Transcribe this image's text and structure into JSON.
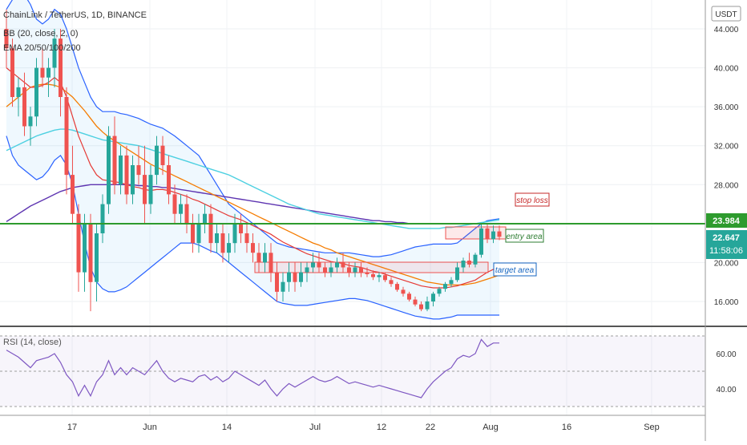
{
  "header": {
    "symbol_line": "ChainLink / TetherUS, 1D, BINANCE",
    "bb_line": "BB (20, close, 2, 0)",
    "ema_line": "EMA 20/50/100/200",
    "currency": "USDT"
  },
  "price_badges": {
    "level": "23.984",
    "last": "22.647",
    "countdown": "11:58:06"
  },
  "annotations": {
    "stop_loss": "stop loss",
    "entry": "entry area",
    "target": "target area"
  },
  "rsi": {
    "label": "RSI (14, close)"
  },
  "colors": {
    "up": "#26a69a",
    "down": "#ef5350",
    "bb": "#2962ff",
    "ema20": "#e53935",
    "ema50": "#f57c00",
    "ema100": "#4dd0e1",
    "ema200": "#5e35b1",
    "level": "#2e9b2e",
    "rsi": "#7e57c2"
  },
  "chart_data": {
    "type": "candlestick",
    "price_axis": {
      "ticks": [
        "44.000",
        "40.000",
        "36.000",
        "32.000",
        "28.000",
        "24.000",
        "20.000",
        "16.000"
      ],
      "tick_values": [
        44,
        40,
        36,
        32,
        28,
        24,
        20,
        16
      ]
    },
    "rsi_axis": {
      "ticks": [
        "60.00",
        "40.00"
      ],
      "tick_values": [
        60,
        40
      ]
    },
    "x_ticks": [
      "17",
      "Jun",
      "14",
      "Jul",
      "12",
      "22",
      "Aug",
      "16",
      "Sep"
    ],
    "horizontal_level": 23.984,
    "candles": [
      [
        44,
        46,
        40,
        42
      ],
      [
        42,
        43,
        36,
        37
      ],
      [
        37,
        39,
        35,
        38
      ],
      [
        38,
        39.5,
        33,
        34
      ],
      [
        34,
        36,
        32,
        35
      ],
      [
        35,
        41,
        34,
        40
      ],
      [
        40,
        42,
        38,
        39
      ],
      [
        39,
        41,
        37,
        40
      ],
      [
        40,
        44,
        38,
        43
      ],
      [
        43,
        44,
        35,
        37
      ],
      [
        37,
        38,
        27,
        29
      ],
      [
        29,
        32,
        24,
        25
      ],
      [
        25,
        26,
        17,
        19
      ],
      [
        19,
        25,
        17,
        24
      ],
      [
        24,
        25,
        15,
        18
      ],
      [
        18,
        24,
        16,
        23
      ],
      [
        23,
        27,
        22,
        26
      ],
      [
        26,
        34,
        25,
        33
      ],
      [
        33,
        35,
        27,
        28
      ],
      [
        28,
        32,
        27,
        31
      ],
      [
        31,
        32,
        26,
        27
      ],
      [
        27,
        31,
        26,
        30
      ],
      [
        30,
        32,
        28,
        29
      ],
      [
        29,
        32,
        24,
        26
      ],
      [
        26,
        30,
        25,
        29
      ],
      [
        29,
        33,
        28,
        32
      ],
      [
        32,
        33,
        29,
        30
      ],
      [
        30,
        31,
        26,
        27
      ],
      [
        27,
        28,
        24,
        25
      ],
      [
        25,
        27,
        24,
        26
      ],
      [
        26,
        27,
        23,
        24
      ],
      [
        24,
        25,
        21,
        22
      ],
      [
        22,
        25,
        21,
        24
      ],
      [
        24,
        26,
        23,
        25
      ],
      [
        25,
        26,
        21,
        22
      ],
      [
        22,
        24,
        21,
        23
      ],
      [
        23,
        24,
        20,
        21
      ],
      [
        21,
        23,
        20,
        22
      ],
      [
        22,
        25,
        21,
        24
      ],
      [
        24,
        25,
        22,
        23
      ],
      [
        23,
        24,
        21,
        22
      ],
      [
        22,
        23,
        20,
        21
      ],
      [
        21,
        22,
        19,
        20
      ],
      [
        20,
        22,
        19,
        21
      ],
      [
        21,
        22,
        18,
        19
      ],
      [
        19,
        20,
        16,
        17
      ],
      [
        17,
        19,
        16,
        18
      ],
      [
        18,
        20,
        17,
        19
      ],
      [
        19,
        20,
        17,
        18
      ],
      [
        18,
        20,
        17.5,
        19
      ],
      [
        19,
        20,
        18,
        19.5
      ],
      [
        19.5,
        21,
        19,
        20
      ],
      [
        20,
        21,
        19,
        19.5
      ],
      [
        19.5,
        20,
        18.5,
        19
      ],
      [
        19,
        20,
        18.5,
        19.5
      ],
      [
        19.5,
        20.5,
        19,
        20
      ],
      [
        20,
        21,
        19,
        19.5
      ],
      [
        19.5,
        20,
        18.5,
        19
      ],
      [
        19,
        20,
        18.5,
        19.5
      ],
      [
        19.5,
        20,
        18.5,
        19
      ],
      [
        19,
        19.5,
        18.5,
        18.8
      ],
      [
        18.8,
        19.2,
        18.2,
        18.5
      ],
      [
        18.5,
        19,
        18,
        18.7
      ],
      [
        18.7,
        19,
        18,
        18.2
      ],
      [
        18.2,
        18.5,
        17.5,
        17.8
      ],
      [
        17.8,
        18,
        17,
        17.2
      ],
      [
        17.2,
        17.5,
        16.5,
        16.8
      ],
      [
        16.8,
        17,
        16,
        16.2
      ],
      [
        16.2,
        16.5,
        15.5,
        15.7
      ],
      [
        15.7,
        16,
        15,
        15.2
      ],
      [
        15.2,
        16.5,
        15,
        16
      ],
      [
        16,
        17,
        15.5,
        16.8
      ],
      [
        16.8,
        17.5,
        16.5,
        17.3
      ],
      [
        17.3,
        18,
        17,
        17.8
      ],
      [
        17.8,
        18.5,
        17.5,
        18.2
      ],
      [
        18.2,
        20,
        18,
        19.5
      ],
      [
        19.5,
        20.5,
        19,
        20.2
      ],
      [
        20.2,
        21,
        19.5,
        19.8
      ],
      [
        19.8,
        21,
        19.5,
        20.8
      ],
      [
        20.8,
        24,
        20.5,
        23.5
      ],
      [
        23.5,
        24,
        22,
        22.4
      ],
      [
        22.4,
        23.8,
        22,
        23.2
      ],
      [
        23.2,
        23.8,
        22.3,
        22.647
      ]
    ],
    "ema20": [
      40,
      39.5,
      39,
      38.5,
      38,
      38,
      38.2,
      38.5,
      39,
      38.5,
      37,
      35,
      33,
      31.5,
      30,
      29,
      28.5,
      28.4,
      28.3,
      28.2,
      28,
      27.8,
      27.7,
      27.5,
      27.4,
      27.5,
      27.5,
      27.4,
      27.2,
      27,
      26.8,
      26.5,
      26.3,
      26,
      25.7,
      25.4,
      25.1,
      24.8,
      24.6,
      24.4,
      24.1,
      23.8,
      23.5,
      23.2,
      22.9,
      22.5,
      22.1,
      21.8,
      21.5,
      21.2,
      20.9,
      20.7,
      20.5,
      20.3,
      20.1,
      20,
      19.9,
      19.7,
      19.6,
      19.5,
      19.3,
      19.1,
      19,
      18.8,
      18.6,
      18.4,
      18.2,
      18,
      17.8,
      17.6,
      17.5,
      17.4,
      17.4,
      17.4,
      17.5,
      17.6,
      17.8,
      18,
      18.2,
      18.6,
      19,
      19.3,
      19.6
    ],
    "ema50": [
      36,
      36.5,
      37,
      37.5,
      38,
      38.2,
      38.3,
      38.3,
      38.2,
      38,
      37.5,
      37,
      36.3,
      35.6,
      34.8,
      34,
      33.4,
      32.9,
      32.5,
      32.1,
      31.7,
      31.3,
      30.9,
      30.5,
      30.1,
      29.8,
      29.5,
      29.2,
      28.9,
      28.6,
      28.3,
      28,
      27.7,
      27.4,
      27.1,
      26.8,
      26.5,
      26.2,
      25.9,
      25.6,
      25.3,
      25,
      24.7,
      24.4,
      24.1,
      23.8,
      23.5,
      23.2,
      22.9,
      22.6,
      22.3,
      22,
      21.8,
      21.5,
      21.3,
      21,
      20.8,
      20.6,
      20.4,
      20.2,
      20,
      19.8,
      19.6,
      19.4,
      19.2,
      19,
      18.8,
      18.6,
      18.4,
      18.2,
      18,
      17.9,
      17.8,
      17.7,
      17.7,
      17.7,
      17.7,
      17.8,
      17.9,
      18.1,
      18.3,
      18.5,
      18.7
    ],
    "ema100": [
      31.5,
      31.8,
      32.1,
      32.4,
      32.7,
      33,
      33.2,
      33.4,
      33.6,
      33.7,
      33.7,
      33.6,
      33.4,
      33.2,
      33,
      32.8,
      32.6,
      32.5,
      32.4,
      32.3,
      32.2,
      32.1,
      32,
      31.8,
      31.6,
      31.4,
      31.2,
      31,
      30.8,
      30.6,
      30.4,
      30.2,
      30,
      29.8,
      29.6,
      29.4,
      29.2,
      29,
      28.7,
      28.4,
      28.1,
      27.8,
      27.5,
      27.2,
      26.9,
      26.6,
      26.3,
      26,
      25.8,
      25.6,
      25.4,
      25.2,
      25,
      24.9,
      24.8,
      24.7,
      24.6,
      24.5,
      24.4,
      24.3,
      24.2,
      24.1,
      24,
      23.9,
      23.8,
      23.7,
      23.6,
      23.5,
      23.5,
      23.5,
      23.5,
      23.5,
      23.5,
      23.6,
      23.6,
      23.7,
      23.8,
      23.9,
      24,
      24.1,
      24.2,
      24.3,
      24.4
    ],
    "ema200": [
      24.2,
      24.6,
      25,
      25.4,
      25.8,
      26.1,
      26.4,
      26.7,
      27,
      27.3,
      27.5,
      27.7,
      27.8,
      27.9,
      28,
      28,
      28,
      28,
      28,
      28,
      28,
      28,
      27.9,
      27.9,
      27.8,
      27.8,
      27.7,
      27.7,
      27.6,
      27.5,
      27.4,
      27.3,
      27.2,
      27.1,
      27,
      26.9,
      26.8,
      26.7,
      26.6,
      26.5,
      26.4,
      26.3,
      26.2,
      26.1,
      26,
      25.9,
      25.8,
      25.7,
      25.6,
      25.5,
      25.4,
      25.3,
      25.2,
      25.1,
      25,
      24.9,
      24.8,
      24.7,
      24.6,
      24.5,
      24.4,
      24.3,
      24.3,
      24.2,
      24.2,
      24.1,
      24.1,
      24,
      24,
      24,
      24,
      24,
      24,
      24,
      24,
      24,
      24,
      24,
      24,
      24,
      24,
      24,
      24
    ],
    "bb_upper": [
      46,
      47,
      47.5,
      47.5,
      46.5,
      45,
      44.5,
      45,
      46,
      45.5,
      44,
      42,
      40,
      38.5,
      37,
      36,
      35.5,
      35.5,
      35.5,
      35.3,
      35.2,
      35,
      34.8,
      34.5,
      34.2,
      34,
      33.8,
      33.4,
      33,
      32.5,
      32,
      31.5,
      31,
      30,
      29,
      28,
      27,
      26,
      25.5,
      25,
      24.5,
      24,
      23.5,
      23,
      22.5,
      22,
      21.8,
      21.6,
      21.5,
      21.4,
      21.3,
      21.2,
      21.1,
      21,
      21,
      21,
      21,
      21,
      20.9,
      20.8,
      20.7,
      20.6,
      20.6,
      20.7,
      20.8,
      21,
      21.2,
      21.4,
      21.6,
      21.7,
      21.8,
      21.9,
      21.9,
      21.9,
      21.9,
      22,
      22.5,
      23,
      23.5,
      24,
      24.3,
      24.4,
      24.5
    ],
    "bb_lower": [
      33,
      31,
      30,
      29.5,
      29,
      28.5,
      28.8,
      29.5,
      30.5,
      31,
      30,
      28,
      25,
      22,
      19.5,
      18,
      17.3,
      17,
      17,
      17.2,
      17.5,
      18,
      18.5,
      19,
      19.5,
      20,
      20.5,
      21,
      21.5,
      22,
      22,
      22,
      21.8,
      21.5,
      21.2,
      21,
      20.5,
      20,
      19.5,
      19,
      18.5,
      18,
      17.5,
      17,
      16.5,
      16,
      15.8,
      15.7,
      15.6,
      15.6,
      15.6,
      15.7,
      15.8,
      15.9,
      16,
      16.1,
      16.2,
      16.3,
      16.3,
      16.2,
      16.1,
      15.9,
      15.7,
      15.5,
      15.3,
      15.1,
      14.9,
      14.7,
      14.5,
      14.4,
      14.3,
      14.2,
      14.2,
      14.3,
      14.4,
      14.6,
      14.6,
      14.6,
      14.6,
      14.6,
      14.6,
      14.6,
      14.6
    ],
    "rsi": [
      62,
      60,
      58,
      55,
      52,
      56,
      57,
      58,
      60,
      55,
      48,
      44,
      36,
      42,
      36,
      44,
      48,
      56,
      48,
      52,
      48,
      52,
      50,
      48,
      52,
      56,
      50,
      46,
      44,
      46,
      45,
      44,
      47,
      48,
      45,
      47,
      44,
      46,
      50,
      48,
      46,
      44,
      42,
      45,
      40,
      36,
      40,
      43,
      41,
      43,
      45,
      47,
      45,
      44,
      45,
      47,
      45,
      43,
      44,
      43,
      42,
      41,
      42,
      41,
      40,
      39,
      38,
      37,
      36,
      35,
      40,
      44,
      47,
      50,
      52,
      57,
      59,
      58,
      60,
      68,
      64,
      66,
      66
    ]
  }
}
